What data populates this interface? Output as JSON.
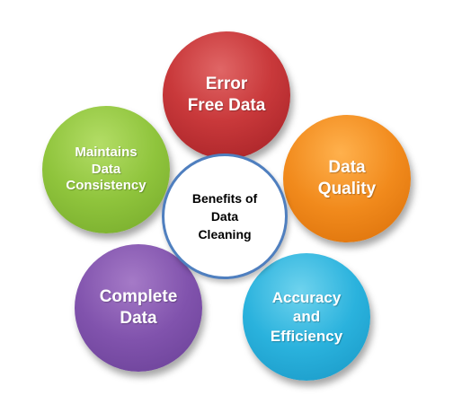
{
  "diagram": {
    "center": {
      "label": "Benefits of\nData\nCleaning"
    },
    "benefits": [
      {
        "label": "Error\nFree Data",
        "color": "#c9393b"
      },
      {
        "label": "Data\nQuality",
        "color": "#f18a1c"
      },
      {
        "label": "Accuracy\nand\nEfficiency",
        "color": "#2ab2dd"
      },
      {
        "label": "Complete\nData",
        "color": "#8153ad"
      },
      {
        "label": "Maintains\nData\nConsistency",
        "color": "#8fc43c"
      }
    ]
  }
}
